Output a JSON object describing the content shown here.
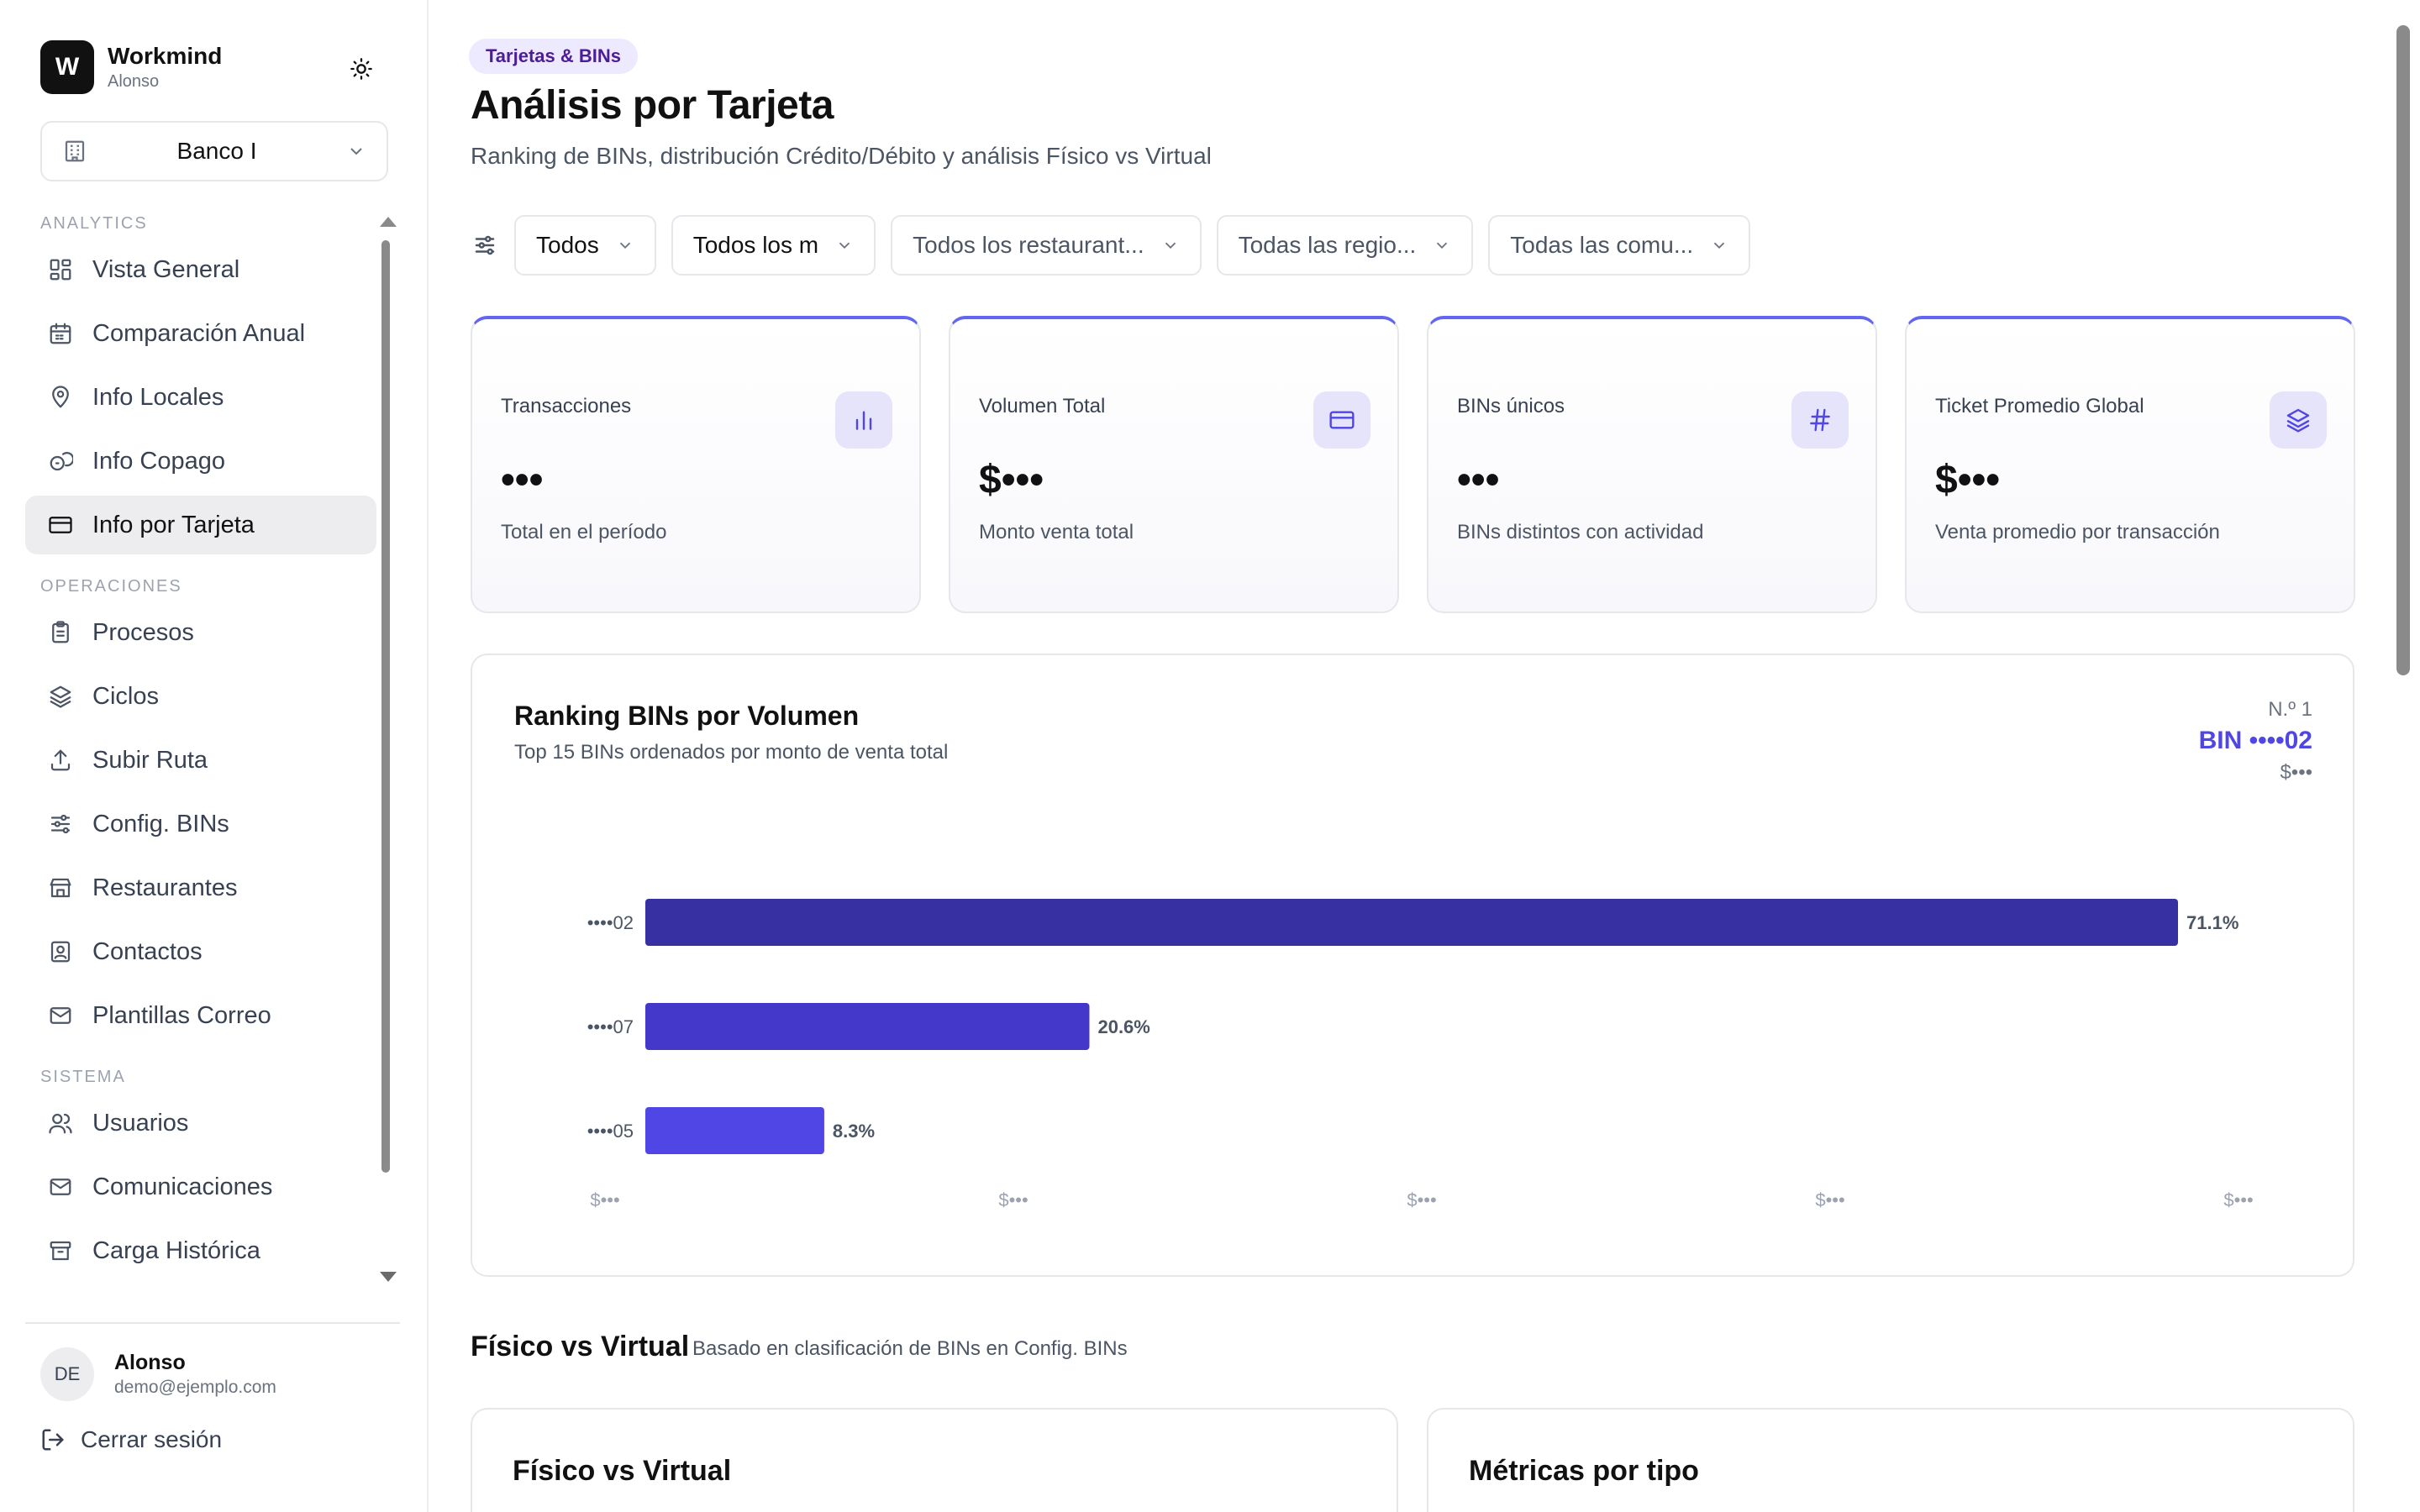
{
  "brand": {
    "logo_letter": "W",
    "name": "Workmind",
    "user": "Alonso"
  },
  "bank_selector": {
    "value": "Banco I"
  },
  "nav": {
    "sections": [
      {
        "title": "ANALYTICS",
        "items": [
          {
            "label": "Vista General",
            "icon": "dashboard-icon",
            "active": false
          },
          {
            "label": "Comparación Anual",
            "icon": "calendar-icon",
            "active": false
          },
          {
            "label": "Info Locales",
            "icon": "map-pin-icon",
            "active": false
          },
          {
            "label": "Info Copago",
            "icon": "coins-icon",
            "active": false
          },
          {
            "label": "Info por Tarjeta",
            "icon": "credit-card-icon",
            "active": true
          }
        ]
      },
      {
        "title": "OPERACIONES",
        "items": [
          {
            "label": "Procesos",
            "icon": "clipboard-icon",
            "active": false
          },
          {
            "label": "Ciclos",
            "icon": "layers-icon",
            "active": false
          },
          {
            "label": "Subir Ruta",
            "icon": "upload-icon",
            "active": false
          },
          {
            "label": "Config. BINs",
            "icon": "sliders-icon",
            "active": false
          },
          {
            "label": "Restaurantes",
            "icon": "store-icon",
            "active": false
          },
          {
            "label": "Contactos",
            "icon": "contact-icon",
            "active": false
          },
          {
            "label": "Plantillas Correo",
            "icon": "mail-icon",
            "active": false
          }
        ]
      },
      {
        "title": "SISTEMA",
        "items": [
          {
            "label": "Usuarios",
            "icon": "users-icon",
            "active": false
          },
          {
            "label": "Comunicaciones",
            "icon": "mail-icon",
            "active": false
          },
          {
            "label": "Carga Histórica",
            "icon": "archive-icon",
            "active": false
          }
        ]
      }
    ]
  },
  "user": {
    "initials": "DE",
    "name": "Alonso",
    "email": "demo@ejemplo.com",
    "logout_label": "Cerrar sesión"
  },
  "header": {
    "badge": "Tarjetas & BINs",
    "title": "Análisis por Tarjeta",
    "subtitle": "Ranking de BINs, distribución Crédito/Débito y análisis Físico vs Virtual"
  },
  "filters": [
    {
      "value": "Todos",
      "muted": false
    },
    {
      "value": "Todos los m",
      "muted": false
    },
    {
      "value": "Todos los restaurant...",
      "muted": true
    },
    {
      "value": "Todas las regio...",
      "muted": true
    },
    {
      "value": "Todas las comu...",
      "muted": true
    }
  ],
  "kpis": [
    {
      "title": "Transacciones",
      "value": "•••",
      "sub": "Total en el período",
      "icon": "bar-chart-icon"
    },
    {
      "title": "Volumen Total",
      "value": "$•••",
      "sub": "Monto venta total",
      "icon": "credit-card-icon"
    },
    {
      "title": "BINs únicos",
      "value": "•••",
      "sub": "BINs distintos con actividad",
      "icon": "hash-icon"
    },
    {
      "title": "Ticket Promedio Global",
      "value": "$•••",
      "sub": "Venta promedio por transacción",
      "icon": "layers-icon"
    }
  ],
  "ranking": {
    "title": "Ranking BINs por Volumen",
    "subtitle": "Top 15 BINs ordenados por monto de venta total",
    "top_rank_label": "N.º 1",
    "top_bin_label": "BIN ••••02",
    "top_value": "$•••"
  },
  "chart_data": {
    "type": "bar",
    "orientation": "horizontal",
    "categories": [
      "••••02",
      "••••07",
      "••••05"
    ],
    "values": [
      71.1,
      20.6,
      8.3
    ],
    "value_labels": [
      "71.1%",
      "20.6%",
      "8.3%"
    ],
    "bar_colors": [
      "#3730a3",
      "#4338ca",
      "#4f46e5"
    ],
    "x_tick_labels": [
      "$•••",
      "$•••",
      "$•••",
      "$•••",
      "$•••"
    ],
    "xlim": [
      0,
      71.1
    ],
    "grid": false
  },
  "physical_virtual": {
    "section_title": "Físico vs Virtual",
    "section_note": "Basado en clasificación de BINs en Config. BINs",
    "card_left_title": "Físico vs Virtual",
    "card_right_title": "Métricas por tipo"
  }
}
